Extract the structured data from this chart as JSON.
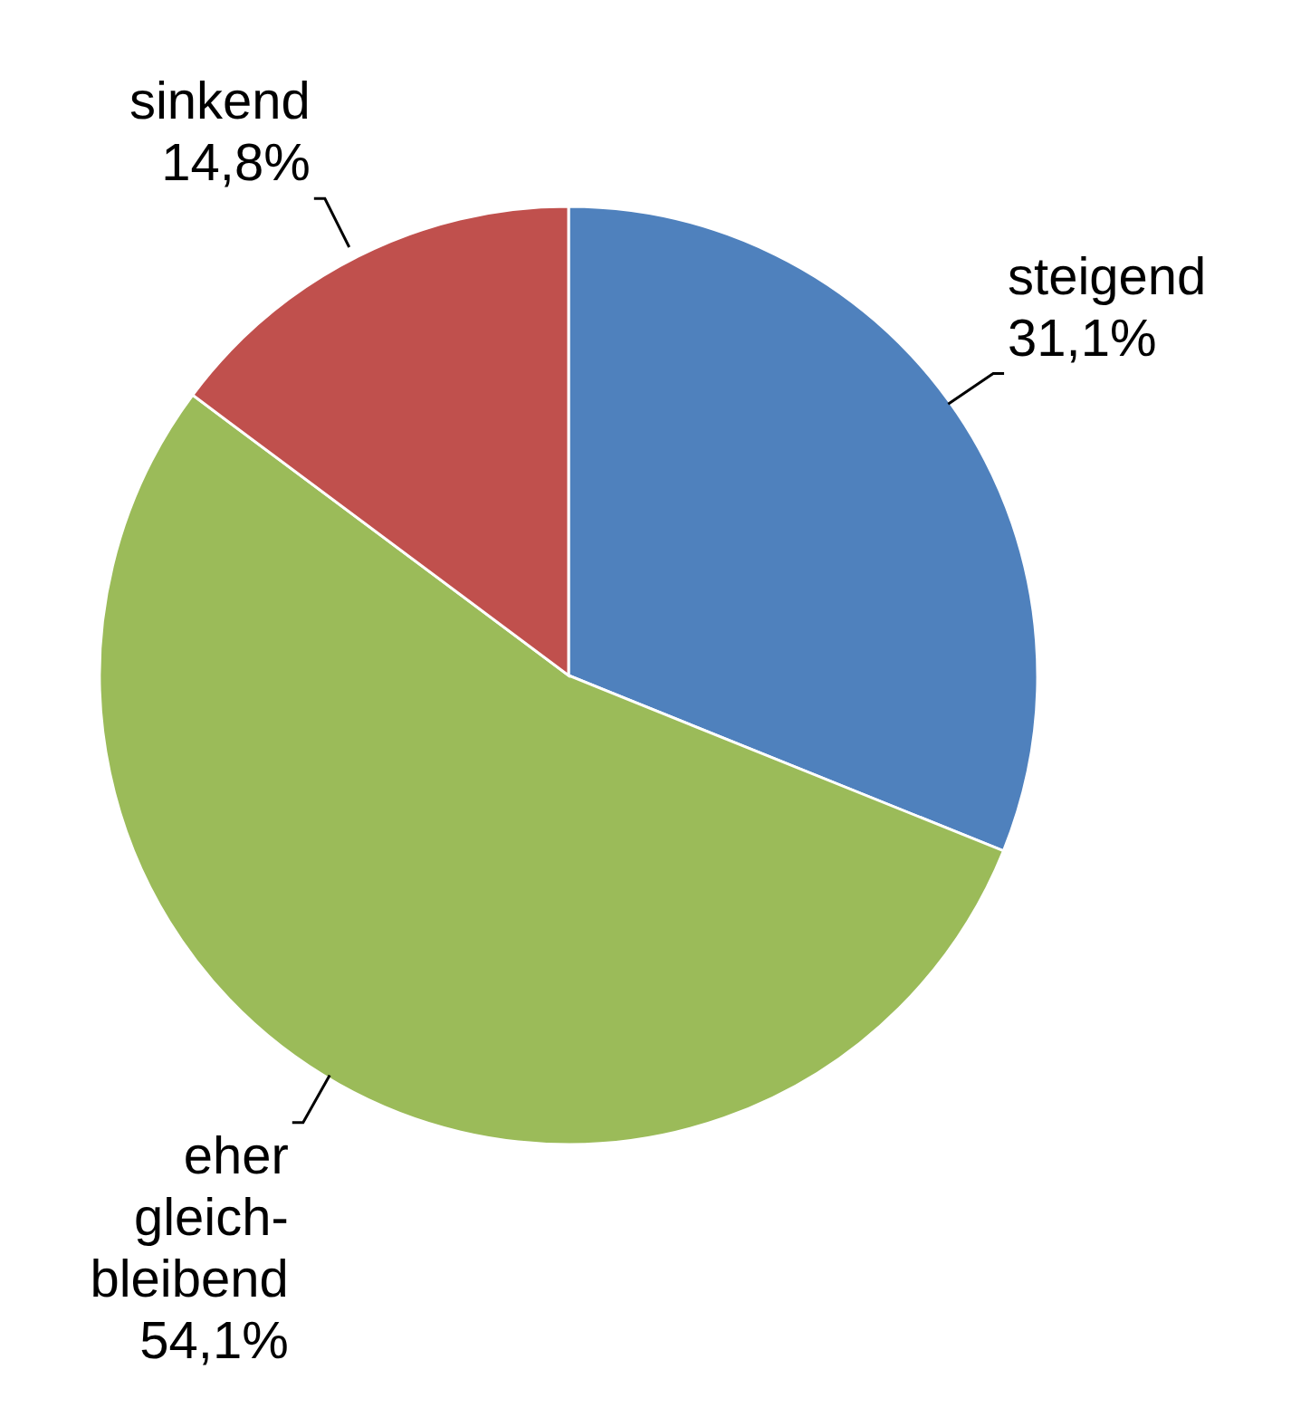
{
  "chart_data": {
    "type": "pie",
    "categories": [
      "steigend",
      "eher gleich-bleibend",
      "sinkend"
    ],
    "values": [
      31.1,
      54.1,
      14.8
    ],
    "colors": [
      "#4f81bd",
      "#9bbb59",
      "#c0504d"
    ],
    "value_labels": [
      "31,1%",
      "54,1%",
      "14,8%"
    ]
  }
}
